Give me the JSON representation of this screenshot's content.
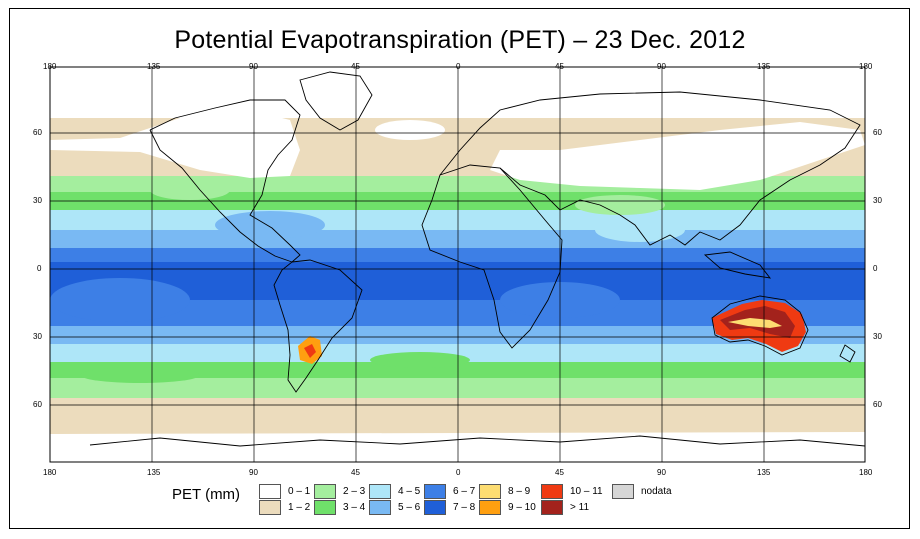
{
  "title": "Potential Evapotranspiration (PET) – 23 Dec. 2012",
  "axes": {
    "x_ticks": [
      "180",
      "135",
      "90",
      "45",
      "0",
      "45",
      "90",
      "135",
      "180"
    ],
    "y_ticks": [
      "60",
      "30",
      "0",
      "30",
      "60"
    ]
  },
  "legend": {
    "title": "PET (mm)",
    "items": [
      {
        "label": "0 – 1",
        "color": "#ffffff"
      },
      {
        "label": "1 – 2",
        "color": "#ecdcbd"
      },
      {
        "label": "2 – 3",
        "color": "#a4ee9e"
      },
      {
        "label": "3 – 4",
        "color": "#6fe06a"
      },
      {
        "label": "4 – 5",
        "color": "#aee6f8"
      },
      {
        "label": "5 – 6",
        "color": "#79b9f3"
      },
      {
        "label": "6 – 7",
        "color": "#3d7fe6"
      },
      {
        "label": "7 – 8",
        "color": "#1f5fd8"
      },
      {
        "label": "8 – 9",
        "color": "#fddd72"
      },
      {
        "label": "9 – 10",
        "color": "#ff9f10"
      },
      {
        "label": "10 – 11",
        "color": "#ef3a12"
      },
      {
        "label": "> 11",
        "color": "#a3221c"
      },
      {
        "label": "nodata",
        "color": "#d6d6d6"
      }
    ]
  }
}
